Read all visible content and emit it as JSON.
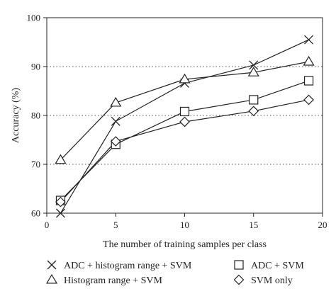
{
  "chart_data": {
    "type": "line",
    "title": "",
    "xlabel": "The number of training samples per class",
    "ylabel": "Accuracy (%)",
    "xlim": [
      0,
      20
    ],
    "ylim": [
      60,
      100
    ],
    "xticks": [
      "0",
      "5",
      "10",
      "15",
      "20"
    ],
    "yticks": [
      "60",
      "70",
      "80",
      "90",
      "100"
    ],
    "grid": "horizontal dotted at 70, 80, 90",
    "legend_position": "below",
    "series": [
      {
        "name": "ADC + histogram range + SVM",
        "marker": "x",
        "x": [
          1,
          5,
          10,
          15,
          19
        ],
        "values": [
          60.0,
          78.8,
          86.6,
          90.3,
          95.5
        ]
      },
      {
        "name": "ADC + SVM",
        "marker": "square",
        "x": [
          1,
          5,
          10,
          15,
          19
        ],
        "values": [
          62.6,
          74.1,
          80.8,
          83.2,
          87.1
        ]
      },
      {
        "name": "Histogram range + SVM",
        "marker": "triangle",
        "x": [
          1,
          5,
          10,
          15,
          19
        ],
        "values": [
          70.9,
          82.6,
          87.4,
          88.8,
          91.0
        ]
      },
      {
        "name": "SVM only",
        "marker": "diamond",
        "x": [
          1,
          5,
          10,
          15,
          19
        ],
        "values": [
          62.3,
          74.7,
          78.7,
          80.9,
          83.2
        ]
      }
    ]
  }
}
